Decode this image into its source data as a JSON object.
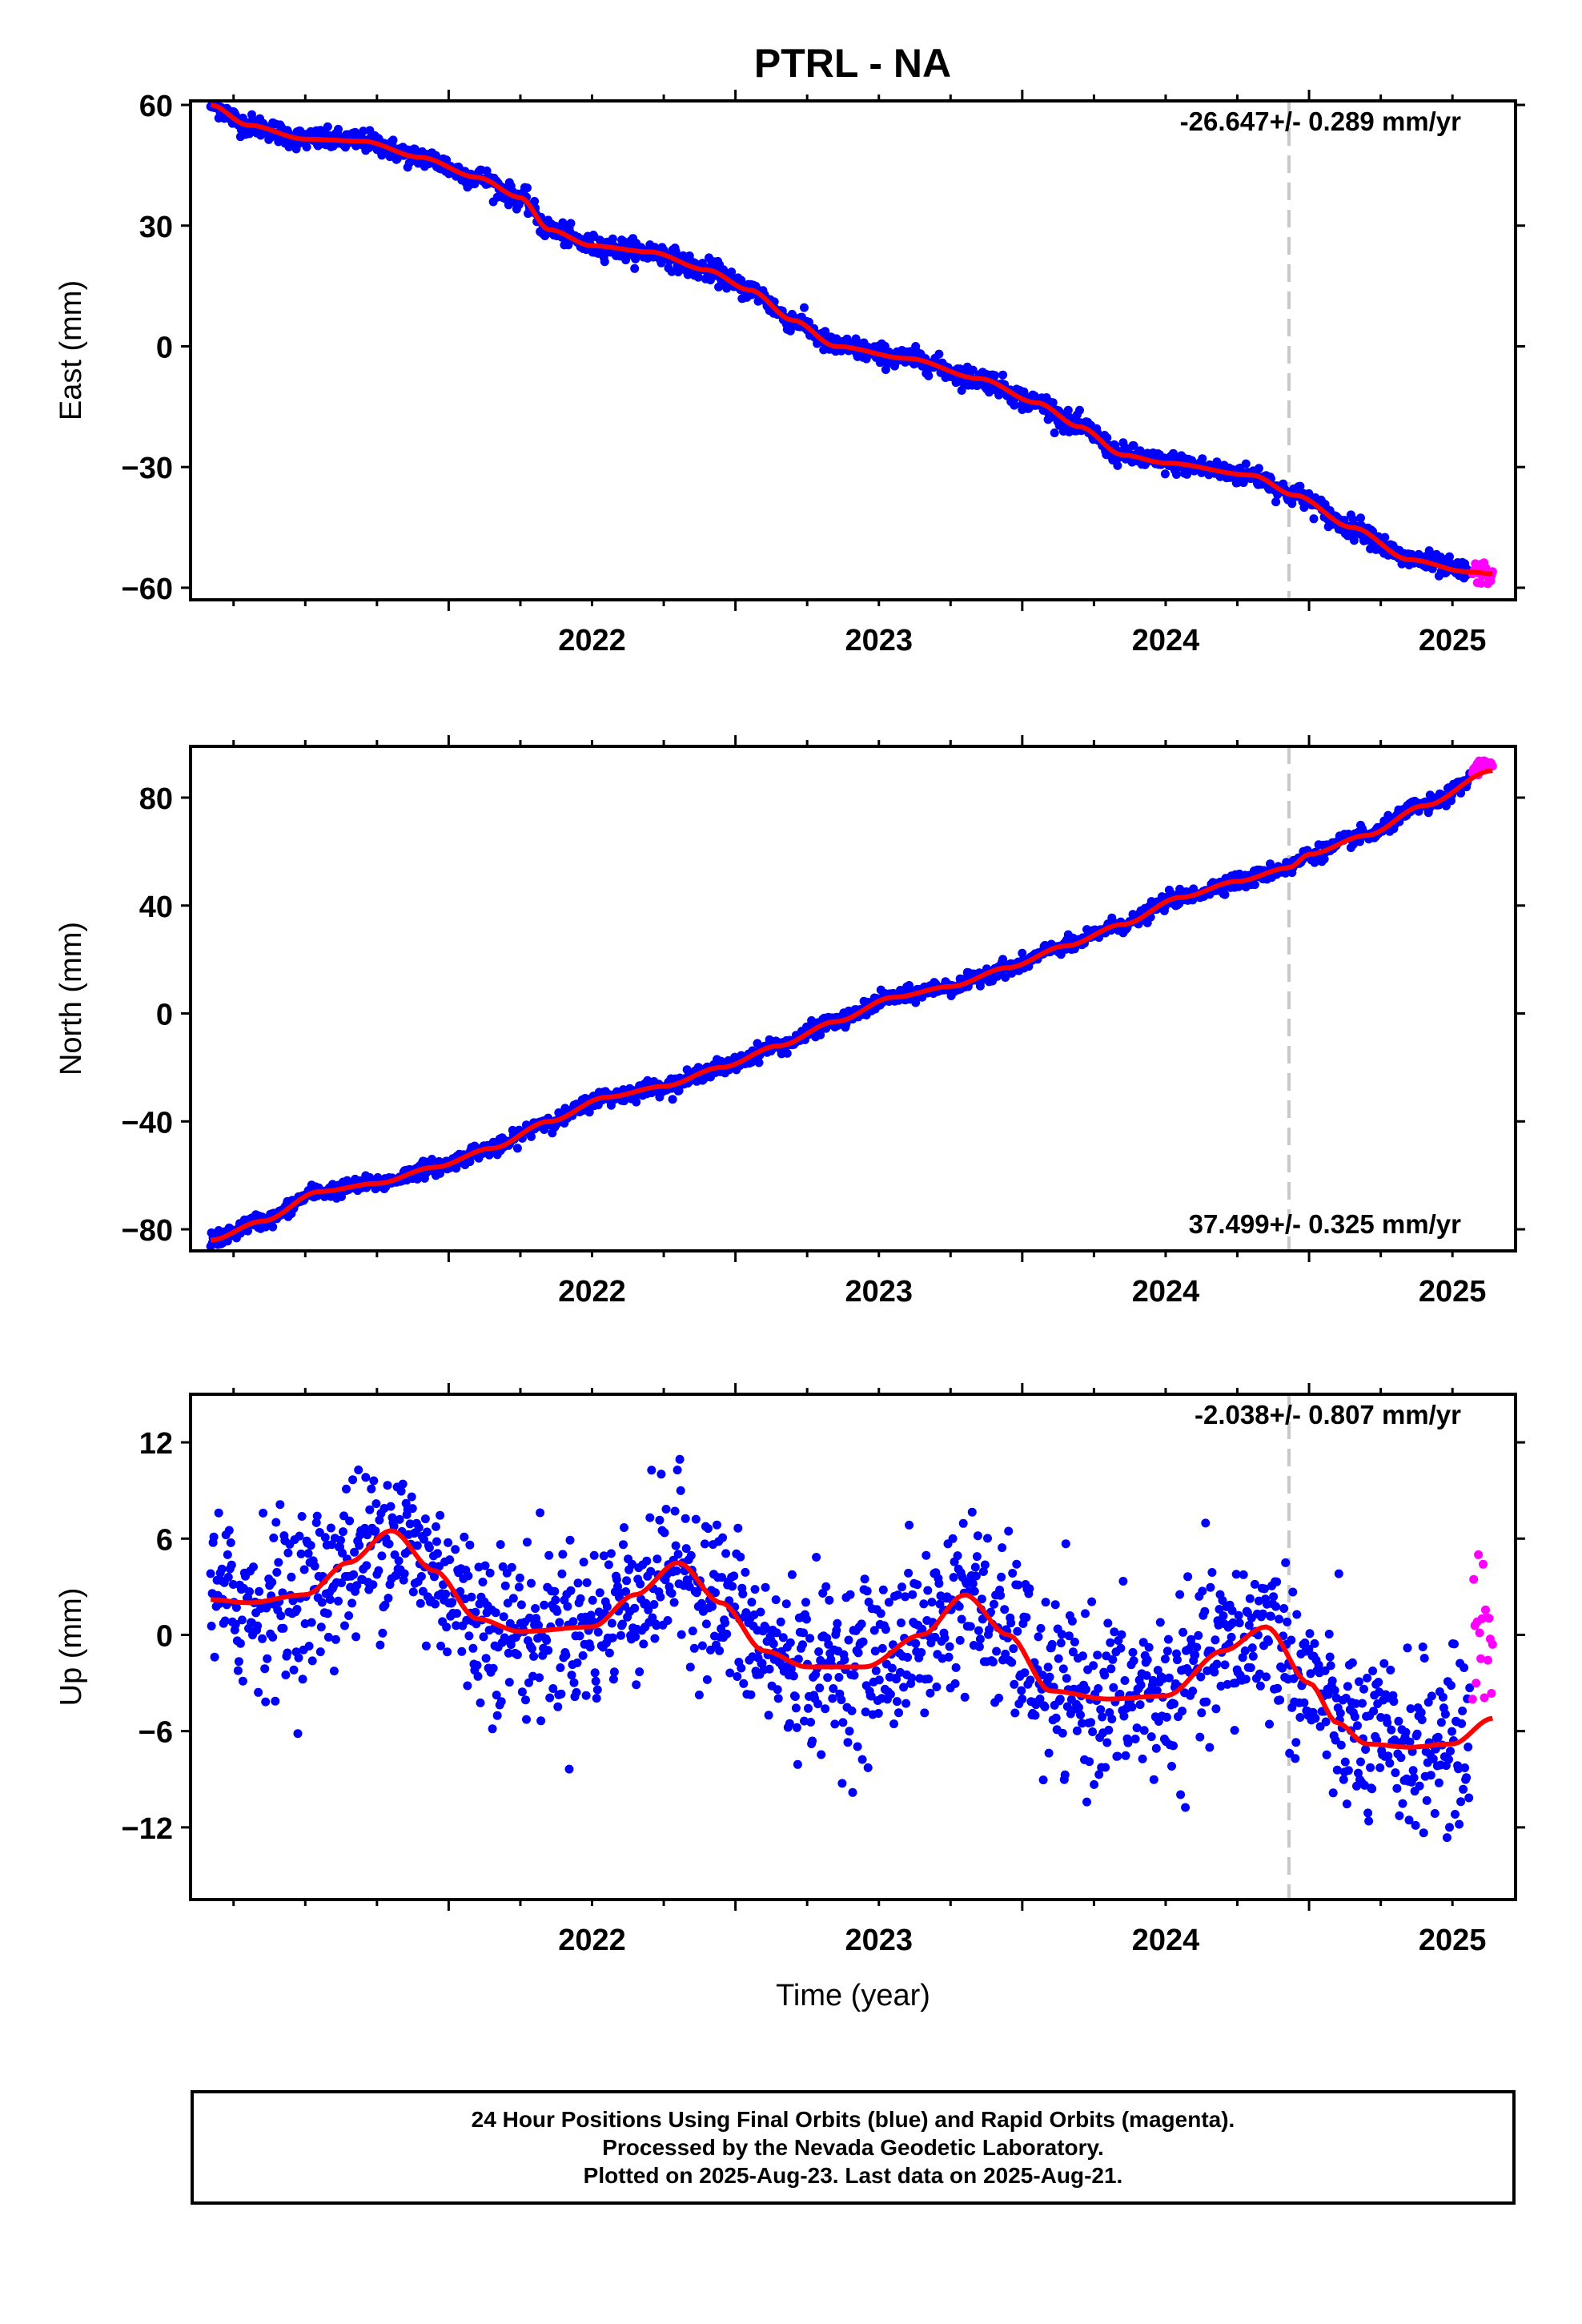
{
  "title": "PTRL - NA",
  "colors": {
    "final_orbits": "#0000ff",
    "rapid_orbits": "#ff00ff",
    "model_fit": "#ff0000",
    "frame": "#000000",
    "marker_line": "#c8c8c8"
  },
  "chart_data": [
    {
      "type": "scatter",
      "ylabel": "East (mm)",
      "rate_label": "-26.647+/- 0.289 mm/yr",
      "xlim": [
        2021.1,
        2025.72
      ],
      "ylim": [
        -63,
        61
      ],
      "yticks": [
        60,
        30,
        0,
        -30,
        -60
      ],
      "xticks": [
        2022,
        2023,
        2024,
        2025
      ],
      "vertical_marker_x": 2024.93,
      "grid": false,
      "fit_curve": {
        "x": [
          2021.17,
          2021.3,
          2021.5,
          2021.7,
          2021.9,
          2022.1,
          2022.25,
          2022.35,
          2022.5,
          2022.7,
          2022.9,
          2023.05,
          2023.2,
          2023.35,
          2023.6,
          2023.85,
          2024.05,
          2024.2,
          2024.35,
          2024.5,
          2024.8,
          2024.95,
          2025.15,
          2025.35,
          2025.55,
          2025.64
        ],
        "y": [
          60,
          55,
          51.5,
          51,
          47,
          42,
          37,
          29,
          25,
          23.5,
          19,
          14,
          6.5,
          0,
          -3,
          -8,
          -14,
          -20,
          -27,
          -29,
          -32,
          -37,
          -45,
          -53,
          -56,
          -56.5
        ]
      },
      "series": [
        {
          "name": "Final Orbits",
          "color": "#0000ff",
          "x_range": [
            2021.17,
            2025.56
          ],
          "n_points": 1560,
          "scatter_sd": 1.3
        },
        {
          "name": "Rapid Orbits",
          "color": "#ff00ff",
          "x_range": [
            2025.57,
            2025.64
          ],
          "n_points": 22,
          "scatter_sd": 1.4,
          "offset": 0
        }
      ]
    },
    {
      "type": "scatter",
      "ylabel": "North (mm)",
      "rate_label": "37.499+/- 0.325 mm/yr",
      "xlim": [
        2021.1,
        2025.72
      ],
      "ylim": [
        -88,
        99
      ],
      "yticks": [
        80,
        40,
        0,
        -40,
        -80
      ],
      "xticks": [
        2022,
        2023,
        2024,
        2025
      ],
      "vertical_marker_x": 2024.93,
      "grid": false,
      "fit_curve": {
        "x": [
          2021.17,
          2021.35,
          2021.55,
          2021.75,
          2021.95,
          2022.15,
          2022.35,
          2022.55,
          2022.75,
          2022.95,
          2023.15,
          2023.35,
          2023.55,
          2023.75,
          2023.95,
          2024.15,
          2024.35,
          2024.55,
          2024.75,
          2024.93,
          2025.0,
          2025.2,
          2025.4,
          2025.64
        ],
        "y": [
          -84,
          -77,
          -66,
          -63,
          -57,
          -50,
          -40,
          -31,
          -27,
          -20,
          -12,
          -3,
          6,
          10,
          17,
          25,
          33,
          43,
          49,
          54,
          59,
          66,
          77,
          90
        ]
      },
      "series": [
        {
          "name": "Final Orbits",
          "color": "#0000ff",
          "x_range": [
            2021.17,
            2025.56
          ],
          "n_points": 1560,
          "scatter_sd": 1.4
        },
        {
          "name": "Rapid Orbits",
          "color": "#ff00ff",
          "x_range": [
            2025.57,
            2025.64
          ],
          "n_points": 22,
          "scatter_sd": 1.2,
          "offset": 3
        }
      ]
    },
    {
      "type": "scatter",
      "ylabel": "Up (mm)",
      "xlabel": "Time (year)",
      "rate_label": "-2.038+/- 0.807 mm/yr",
      "xlim": [
        2021.1,
        2025.72
      ],
      "ylim": [
        -16.5,
        15
      ],
      "yticks": [
        12,
        6,
        0,
        -6,
        -12
      ],
      "xticks": [
        2022,
        2023,
        2024,
        2025
      ],
      "vertical_marker_x": 2024.93,
      "grid": false,
      "fit_curve": {
        "x": [
          2021.17,
          2021.3,
          2021.5,
          2021.65,
          2021.8,
          2021.95,
          2022.1,
          2022.25,
          2022.5,
          2022.65,
          2022.8,
          2022.95,
          2023.1,
          2023.25,
          2023.45,
          2023.65,
          2023.8,
          2023.95,
          2024.1,
          2024.3,
          2024.5,
          2024.7,
          2024.85,
          2025.0,
          2025.1,
          2025.2,
          2025.35,
          2025.5,
          2025.64
        ],
        "y": [
          2.2,
          2.0,
          2.5,
          4.5,
          6.5,
          4.0,
          1.0,
          0.2,
          0.5,
          2.5,
          4.5,
          2.0,
          -1.0,
          -2.0,
          -2.0,
          0.0,
          2.5,
          0.0,
          -3.5,
          -4.0,
          -3.8,
          -1.0,
          0.5,
          -3.0,
          -5.5,
          -6.8,
          -7.0,
          -6.8,
          -5.2
        ]
      },
      "series": [
        {
          "name": "Final Orbits",
          "color": "#0000ff",
          "x_range": [
            2021.17,
            2025.56
          ],
          "n_points": 1560,
          "scatter_sd": 2.6
        },
        {
          "name": "Rapid Orbits",
          "color": "#ff00ff",
          "x_range": [
            2025.57,
            2025.64
          ],
          "n_points": 18,
          "scatter_sd": 3.0,
          "offset": 6
        }
      ]
    }
  ],
  "footer": {
    "line1": "24 Hour Positions Using Final Orbits (blue) and Rapid Orbits (magenta).",
    "line2": "Processed by the Nevada Geodetic Laboratory.",
    "line3": "Plotted on 2025-Aug-23. Last data on 2025-Aug-21."
  }
}
